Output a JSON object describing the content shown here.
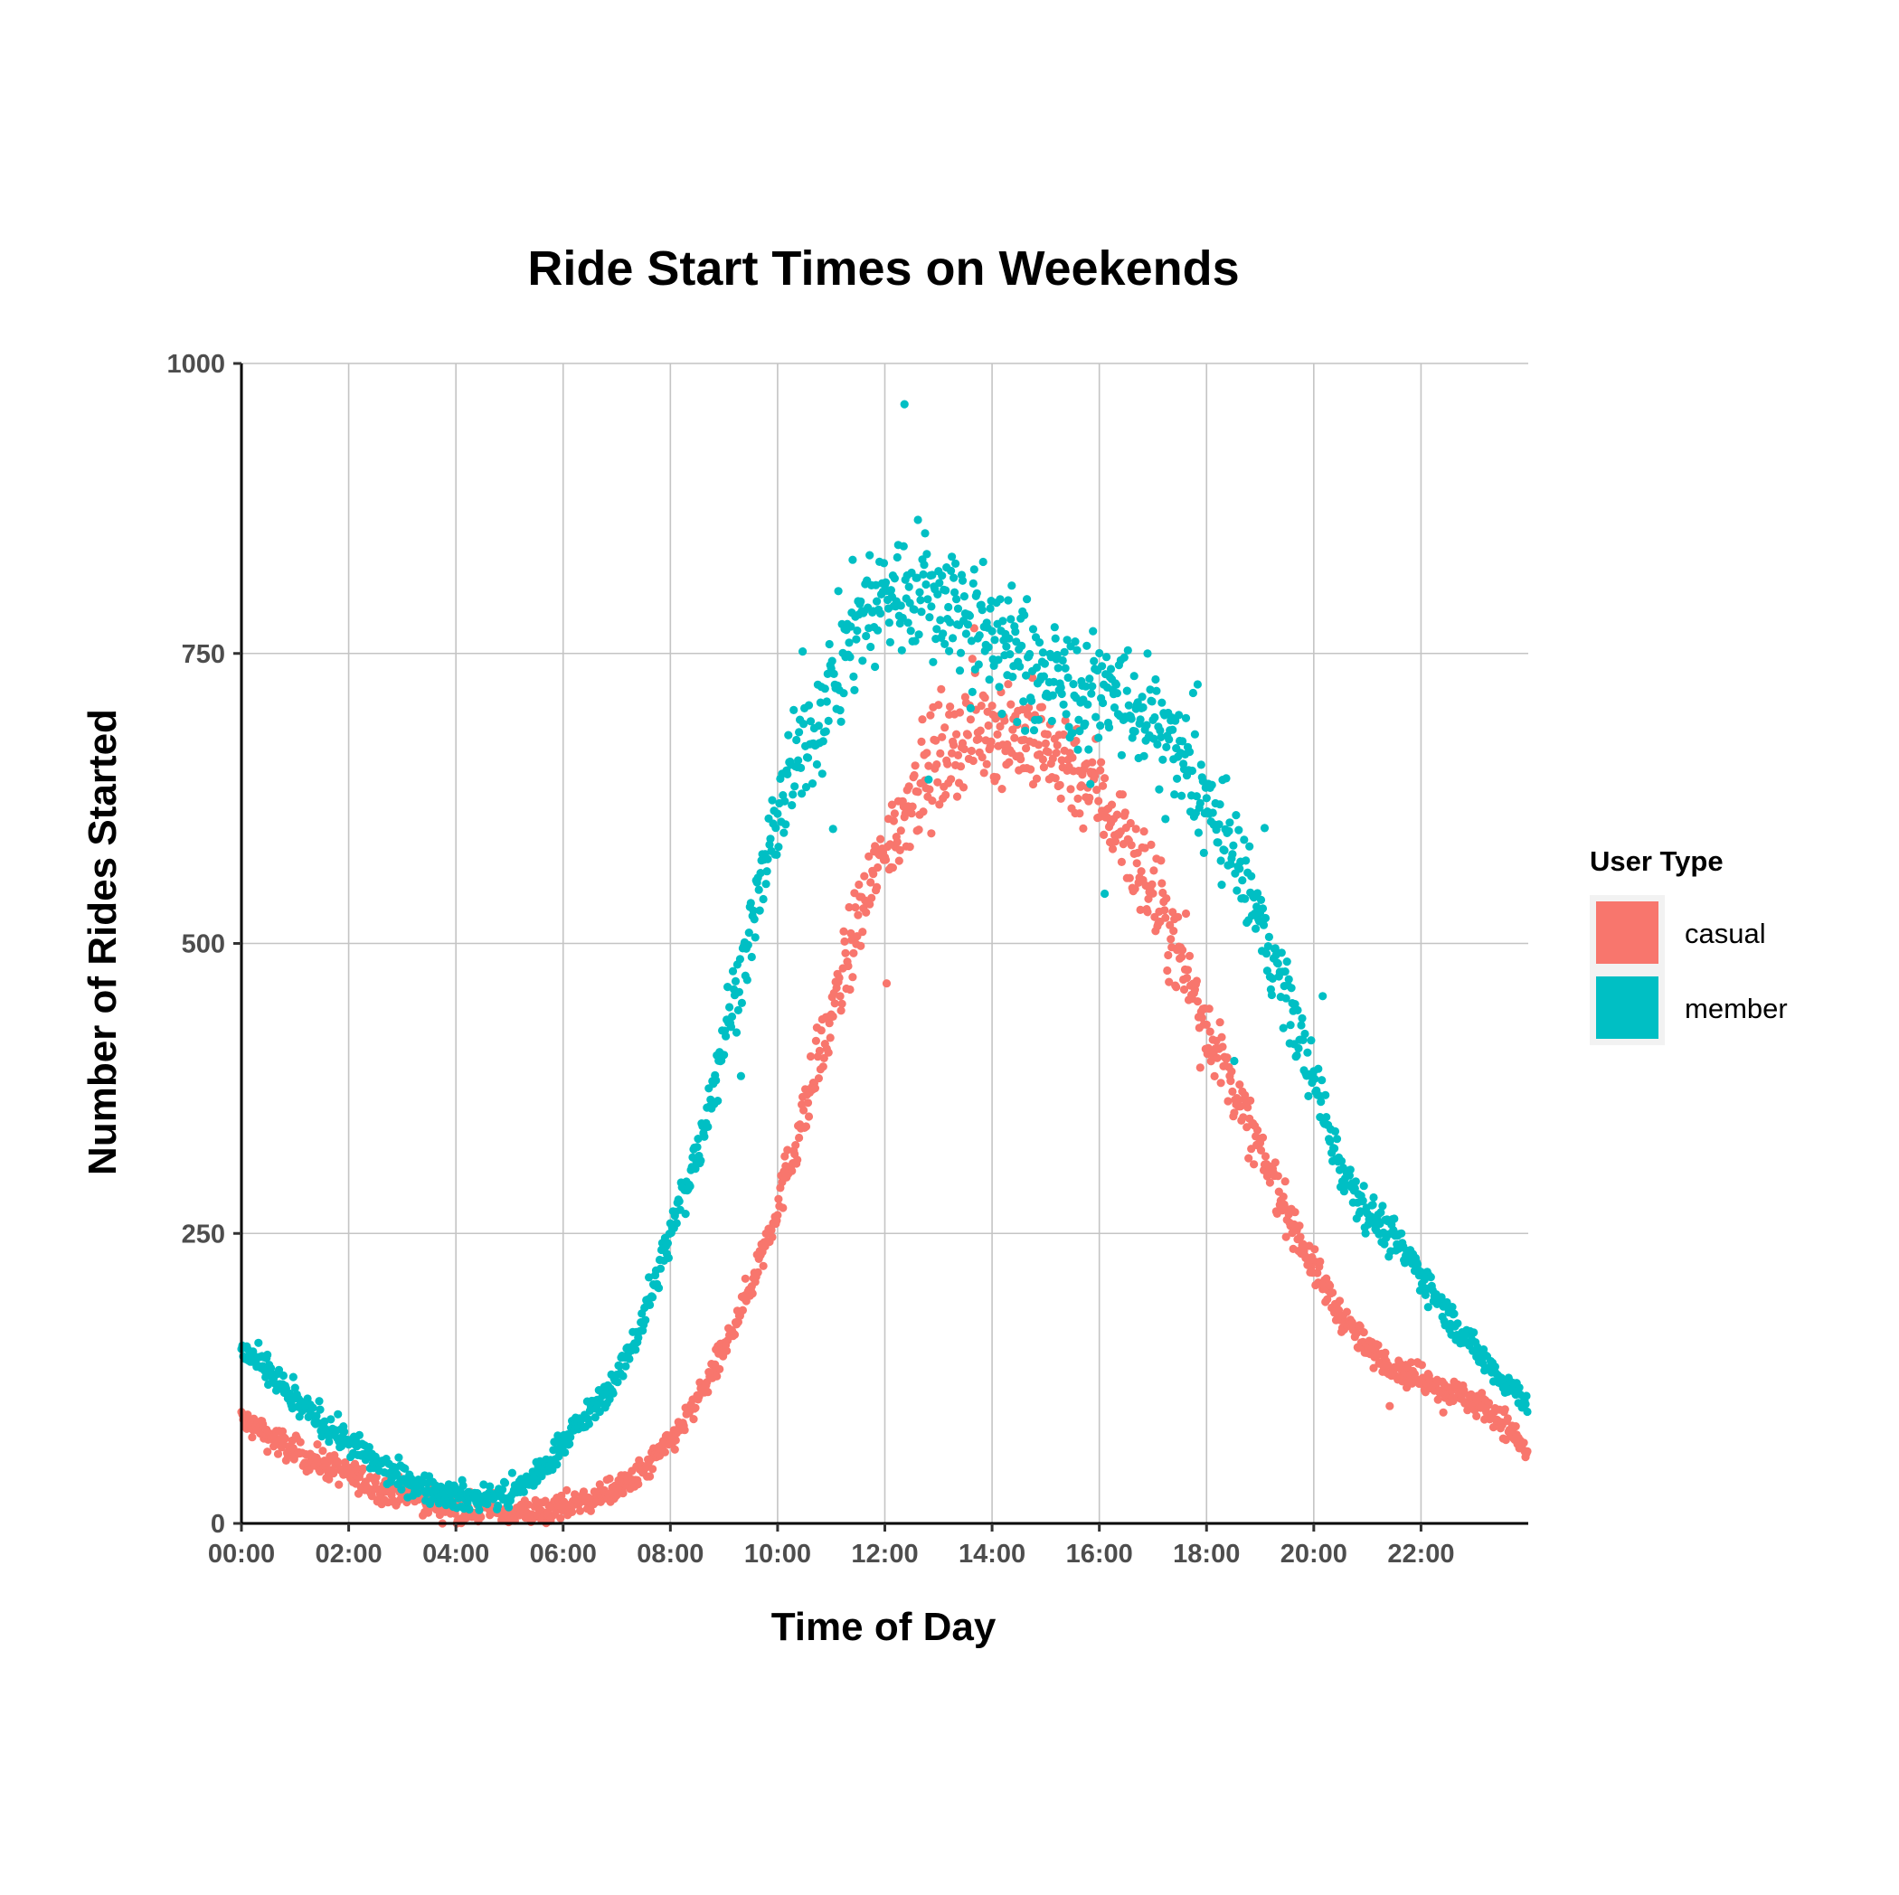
{
  "chart_data": {
    "type": "scatter",
    "title": "Ride Start Times on Weekends",
    "xlabel": "Time of Day",
    "ylabel": "Number of Rides Started",
    "xlim": [
      0,
      24
    ],
    "ylim": [
      0,
      1000
    ],
    "x_unit": "hours",
    "x_ticks": [
      0,
      2,
      4,
      6,
      8,
      10,
      12,
      14,
      16,
      18,
      20,
      22
    ],
    "x_tick_labels": [
      "00:00",
      "02:00",
      "04:00",
      "06:00",
      "08:00",
      "10:00",
      "12:00",
      "14:00",
      "16:00",
      "18:00",
      "20:00",
      "22:00"
    ],
    "y_ticks": [
      0,
      250,
      500,
      750,
      1000
    ],
    "y_tick_labels": [
      "0",
      "250",
      "500",
      "750",
      "1000"
    ],
    "grid": true,
    "legend": {
      "title": "User Type",
      "position": "right"
    },
    "series": [
      {
        "name": "casual",
        "color": "#F8766D",
        "x": [
          0.0,
          0.5,
          1.0,
          1.5,
          2.0,
          2.5,
          3.0,
          3.5,
          4.0,
          4.5,
          5.0,
          5.5,
          6.0,
          6.5,
          7.0,
          7.5,
          8.0,
          8.5,
          9.0,
          9.5,
          10.0,
          10.5,
          11.0,
          11.5,
          12.0,
          12.5,
          13.0,
          13.5,
          14.0,
          14.5,
          15.0,
          15.5,
          16.0,
          16.5,
          17.0,
          17.5,
          18.0,
          18.5,
          19.0,
          19.5,
          20.0,
          20.5,
          21.0,
          21.5,
          22.0,
          22.5,
          23.0,
          23.5,
          24.0
        ],
        "y": [
          90,
          75,
          62,
          52,
          42,
          32,
          25,
          19,
          14,
          11,
          9,
          10,
          14,
          20,
          28,
          45,
          70,
          105,
          150,
          205,
          275,
          355,
          435,
          520,
          580,
          630,
          660,
          680,
          690,
          680,
          670,
          655,
          630,
          590,
          545,
          490,
          430,
          375,
          320,
          270,
          220,
          180,
          150,
          135,
          125,
          115,
          105,
          90,
          60
        ]
      },
      {
        "name": "member",
        "color": "#00BFC4",
        "x": [
          0.0,
          0.5,
          1.0,
          1.5,
          2.0,
          2.5,
          3.0,
          3.5,
          4.0,
          4.5,
          5.0,
          5.5,
          6.0,
          6.5,
          7.0,
          7.5,
          8.0,
          8.5,
          9.0,
          9.5,
          10.0,
          10.5,
          11.0,
          11.5,
          12.0,
          12.5,
          13.0,
          13.5,
          14.0,
          14.5,
          15.0,
          15.5,
          16.0,
          16.5,
          17.0,
          17.5,
          18.0,
          18.5,
          19.0,
          19.5,
          20.0,
          20.5,
          21.0,
          21.5,
          22.0,
          22.5,
          23.0,
          23.5,
          24.0
        ],
        "y": [
          150,
          130,
          105,
          88,
          70,
          52,
          38,
          30,
          24,
          22,
          25,
          40,
          70,
          95,
          125,
          175,
          250,
          320,
          420,
          510,
          610,
          670,
          720,
          780,
          800,
          805,
          800,
          785,
          765,
          745,
          730,
          720,
          715,
          710,
          690,
          660,
          620,
          575,
          520,
          455,
          380,
          310,
          270,
          245,
          215,
          180,
          150,
          125,
          105
        ]
      }
    ]
  }
}
